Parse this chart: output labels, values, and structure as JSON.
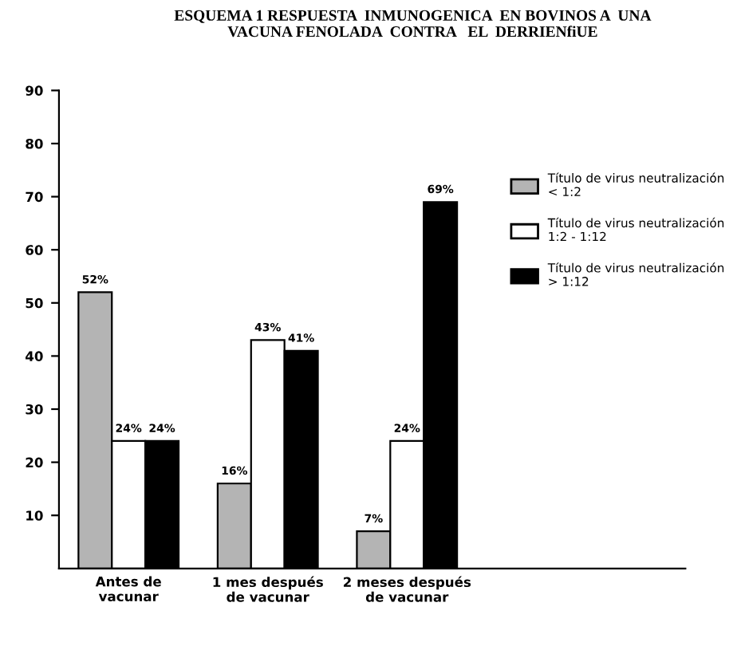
{
  "chart_data": {
    "type": "bar",
    "title": "ESQUEMA 1 RESPUESTA  INMUNOGENICA  EN BOVINOS A  UNA\nVACUNA FENOLADA  CONTRA   EL  DERRIENfiUE",
    "categories": [
      "Antes de\nvacunar",
      "1 mes después\nde vacunar",
      "2 meses después\nde vacunar"
    ],
    "series": [
      {
        "name": "Título de virus neutralización\n< 1:2",
        "color": "#b4b4b4",
        "values": [
          52,
          16,
          7
        ],
        "value_labels": [
          "52%",
          "16%",
          "7%"
        ]
      },
      {
        "name": "Título de virus neutralización\n1:2 - 1:12",
        "color": "#ffffff",
        "values": [
          24,
          43,
          24
        ],
        "value_labels": [
          "24%",
          "43%",
          "24%"
        ]
      },
      {
        "name": "Título de virus neutralización\n> 1:12",
        "color": "#000000",
        "values": [
          24,
          41,
          69
        ],
        "value_labels": [
          "24%",
          "41%",
          "69%"
        ]
      }
    ],
    "ylim": [
      0,
      90
    ],
    "yticks": [
      10,
      20,
      30,
      40,
      50,
      60,
      70,
      80,
      90
    ],
    "grid": false,
    "legend": "top right"
  }
}
